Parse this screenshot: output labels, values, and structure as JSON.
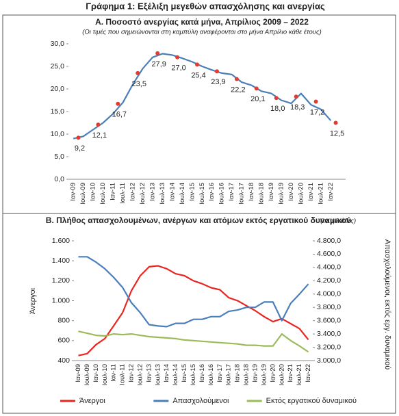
{
  "title": "Γράφημα 1: Εξέλιξη μεγεθών απασχόλησης και ανεργίας",
  "chart_data": [
    {
      "type": "line",
      "title": "Α. Ποσοστό ανεργίας κατά μήνα, Απρίλιος 2009 – 2022",
      "subtitle": "(Οι τιμές που σημειώνονται στη καμπύλη αναφέρονται στο μήνα Απρίλιο κάθε έτους)",
      "categories": [
        "Ιαν-09",
        "Ιουλ-09",
        "Ιαν-10",
        "Ιουλ-10",
        "Ιαν-11",
        "Ιουλ-11",
        "Ιαν-12",
        "Ιουλ-12",
        "Ιαν-13",
        "Ιουλ-13",
        "Ιαν-14",
        "Ιουλ-14",
        "Ιαν-15",
        "Ιουλ-15",
        "Ιαν-16",
        "Ιουλ-16",
        "Ιαν-17",
        "Ιουλ-17",
        "Ιαν-18",
        "Ιουλ-18",
        "Ιαν-19",
        "Ιουλ-19",
        "Ιαν-20",
        "Ιουλ-20",
        "Ιαν-21",
        "Ιουλ-21",
        "Ιαν-22"
      ],
      "values": [
        9.0,
        9.5,
        11.0,
        12.5,
        14.5,
        17.0,
        21.0,
        24.5,
        27.0,
        27.8,
        27.5,
        26.8,
        26.0,
        25.0,
        24.2,
        23.5,
        23.2,
        21.5,
        20.8,
        19.5,
        19.0,
        17.5,
        16.8,
        19.0,
        16.5,
        15.5,
        13.0
      ],
      "color": "#4a7ebb",
      "markers": {
        "color": "#e03c31",
        "values": [
          9.2,
          12.1,
          16.7,
          23.5,
          27.9,
          27.0,
          25.4,
          23.9,
          22.2,
          20.1,
          18.0,
          18.3,
          17.2,
          12.5
        ],
        "value_labels": [
          "9,2",
          "12,1",
          "16,7",
          "23,5",
          "27,9",
          "27,0",
          "25,4",
          "23,9",
          "22,2",
          "20,1",
          "18,0",
          "18,3",
          "17,2",
          "12,5"
        ]
      },
      "ylim": [
        0,
        30
      ],
      "yticks": [
        {
          "value": 0,
          "label": "0,0"
        },
        {
          "value": 5,
          "label": "5,0"
        },
        {
          "value": 10,
          "label": "10,0"
        },
        {
          "value": 15,
          "label": "15,0"
        },
        {
          "value": 20,
          "label": "20,0"
        },
        {
          "value": 25,
          "label": "25,0"
        },
        {
          "value": 30,
          "label": "30,0"
        }
      ],
      "grid": false
    },
    {
      "type": "line",
      "title": "Β. Πλήθος απασχολουμένων, ανέργων και ατόμων εκτός εργατικού δυναμικού",
      "subtitle": "(σε χιλιάδες)",
      "ylabel": "Άνεργοι",
      "y2label": "Απασχολούμενοι, εκτός εργ. δυναμικού",
      "categories": [
        "Ιαν-09",
        "Ιουλ-09",
        "Ιαν-10",
        "Ιουλ-10",
        "Ιαν-11",
        "Ιουλ-11",
        "Ιαν-12",
        "Ιουλ-12",
        "Ιαν-13",
        "Ιουλ-13",
        "Ιαν-14",
        "Ιουλ-14",
        "Ιαν-15",
        "Ιουλ-15",
        "Ιαν-16",
        "Ιουλ-16",
        "Ιαν-17",
        "Ιουλ-17",
        "Ιαν-18",
        "Ιουλ-18",
        "Ιαν-19",
        "Ιουλ-19",
        "Ιαν-20",
        "Ιουλ-20",
        "Ιαν-21",
        "Ιουλ-21",
        "Ιαν-22"
      ],
      "series": [
        {
          "name": "Άνεργοι",
          "color": "#e8251f",
          "axis": "y",
          "values": [
            450,
            470,
            560,
            620,
            750,
            880,
            1100,
            1250,
            1340,
            1350,
            1320,
            1270,
            1250,
            1200,
            1170,
            1130,
            1110,
            1030,
            1000,
            950,
            900,
            840,
            790,
            820,
            770,
            720,
            610
          ]
        },
        {
          "name": "Απασχολούμενοι",
          "color": "#4a7ebb",
          "axis": "y2",
          "values": [
            4560,
            4560,
            4480,
            4380,
            4250,
            4100,
            3870,
            3720,
            3540,
            3520,
            3510,
            3560,
            3560,
            3620,
            3620,
            3660,
            3660,
            3740,
            3760,
            3800,
            3800,
            3880,
            3880,
            3600,
            3860,
            4000,
            4150
          ]
        },
        {
          "name": "Εκτός εργατικού δυναμικού",
          "color": "#9bbb59",
          "axis": "y2",
          "values": [
            3440,
            3410,
            3380,
            3370,
            3400,
            3390,
            3400,
            3380,
            3360,
            3350,
            3340,
            3330,
            3310,
            3300,
            3290,
            3280,
            3270,
            3260,
            3250,
            3230,
            3230,
            3220,
            3220,
            3400,
            3300,
            3220,
            3130
          ]
        }
      ],
      "ylim": [
        400,
        1600
      ],
      "yticks": [
        400,
        600,
        800,
        {
          "value": 1000,
          "label": "1.000"
        },
        {
          "value": 1200,
          "label": "1.200"
        },
        {
          "value": 1400,
          "label": "1.400"
        },
        {
          "value": 1600,
          "label": "1.600"
        }
      ],
      "y2lim": [
        3000,
        4800
      ],
      "y2ticks": [
        {
          "value": 3000,
          "label": "3.000,0"
        },
        {
          "value": 3200,
          "label": "3.200,0"
        },
        {
          "value": 3400,
          "label": "3.400,0"
        },
        {
          "value": 3600,
          "label": "3.600,0"
        },
        {
          "value": 3800,
          "label": "3.800,0"
        },
        {
          "value": 4000,
          "label": "4.000,0"
        },
        {
          "value": 4200,
          "label": "4.200,0"
        },
        {
          "value": 4400,
          "label": "4.400,0"
        },
        {
          "value": 4600,
          "label": "4.600,0"
        },
        {
          "value": 4800,
          "label": "4.800,0"
        }
      ],
      "grid": false,
      "legend": "bottom"
    }
  ]
}
